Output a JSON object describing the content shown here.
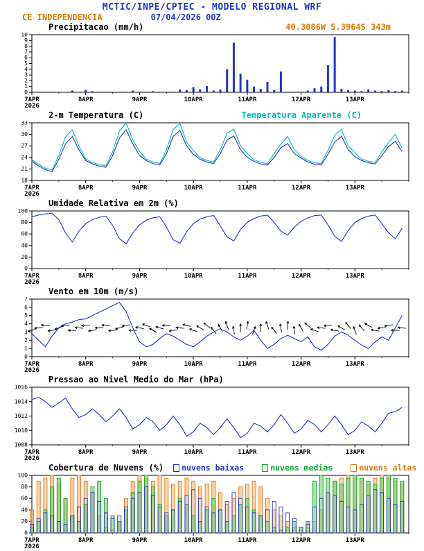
{
  "header": {
    "title": "MCTIC/INPE/CPTEC - MODELO REGIONAL WRF",
    "station": "CE INDEPENDENCIA",
    "datetime": "07/04/2026 00Z",
    "coordinates": "40.3086W 5.3964S 343m",
    "colors": {
      "title": "#2233cc",
      "station": "#dd7700",
      "datetime": "#2233cc",
      "coords": "#dd7700"
    }
  },
  "axis": {
    "x_hours": 168,
    "minor_step": 12,
    "xticks": [
      {
        "t": 0,
        "label": "7APR",
        "sub": "2026"
      },
      {
        "t": 24,
        "label": "8APR"
      },
      {
        "t": 48,
        "label": "9APR"
      },
      {
        "t": 72,
        "label": "10APR"
      },
      {
        "t": 96,
        "label": "11APR"
      },
      {
        "t": 120,
        "label": "12APR"
      },
      {
        "t": 144,
        "label": "13APR"
      }
    ]
  },
  "chart_data": [
    {
      "type": "bar",
      "title": "Precipitacao (mm/h)",
      "ylim": [
        0,
        10
      ],
      "yticks": [
        0,
        1,
        2,
        3,
        4,
        5,
        6,
        7,
        8,
        9,
        10
      ],
      "color": "#2233cc",
      "t_step": 3,
      "values": [
        0,
        0,
        0,
        0,
        0,
        0,
        0.3,
        0,
        0.4,
        0.2,
        0,
        0,
        0,
        0,
        0,
        0.3,
        0,
        0,
        0.2,
        0,
        0,
        0,
        0.5,
        0.4,
        0.9,
        0.5,
        1.1,
        0.3,
        0.5,
        4.0,
        8.6,
        3.2,
        2.2,
        1.0,
        0.6,
        1.8,
        0.4,
        3.6,
        0,
        0,
        0,
        0.3,
        0.7,
        1.0,
        4.7,
        9.6,
        0.6,
        0.4,
        0.3,
        0.2,
        0.5,
        0.3,
        0.2,
        0.4,
        0.2,
        0.3
      ]
    },
    {
      "type": "line",
      "title": "2-m Temperatura (C)",
      "ylim": [
        18,
        33
      ],
      "yticks": [
        18,
        21,
        24,
        27,
        30,
        33
      ],
      "t_step": 3,
      "series": [
        {
          "name": "2-m Temperatura (C)",
          "color": "#2233cc",
          "values": [
            23.0,
            21.8,
            20.8,
            20.3,
            23.5,
            27.5,
            29.4,
            26.0,
            23.2,
            22.3,
            21.7,
            21.4,
            24.5,
            29.0,
            31.2,
            27.5,
            24.5,
            23.2,
            22.4,
            22.0,
            25.0,
            29.5,
            31.0,
            27.0,
            24.8,
            23.5,
            22.8,
            22.4,
            25.0,
            28.5,
            29.6,
            26.0,
            24.0,
            23.0,
            22.3,
            22.0,
            24.0,
            26.5,
            27.6,
            25.0,
            23.8,
            22.8,
            22.2,
            22.0,
            24.8,
            28.0,
            29.5,
            26.0,
            24.2,
            23.2,
            22.6,
            22.3,
            24.5,
            26.8,
            28.2,
            25.5
          ]
        },
        {
          "name": "Temperatura Aparente (C)",
          "color": "#00bbbb",
          "values": [
            23.4,
            22.2,
            21.2,
            20.7,
            24.5,
            29.3,
            31.2,
            27.0,
            23.6,
            22.7,
            22.1,
            21.8,
            25.5,
            30.8,
            33.0,
            28.5,
            25.5,
            23.6,
            22.8,
            22.4,
            26.0,
            31.3,
            32.8,
            28.0,
            25.8,
            23.9,
            23.2,
            22.8,
            26.0,
            30.3,
            31.4,
            27.0,
            25.0,
            23.4,
            22.7,
            22.4,
            25.0,
            27.5,
            29.4,
            26.0,
            24.2,
            23.2,
            22.6,
            22.4,
            25.8,
            29.8,
            31.3,
            27.0,
            25.2,
            23.6,
            23.0,
            22.7,
            25.5,
            27.8,
            30.0,
            26.5
          ]
        }
      ]
    },
    {
      "type": "line",
      "title": "Umidade Relativa em 2m (%)",
      "ylim": [
        0,
        100
      ],
      "yticks": [
        0,
        20,
        40,
        60,
        80,
        100
      ],
      "t_step": 3,
      "series": [
        {
          "name": "Umidade Relativa em 2m (%)",
          "color": "#2233cc",
          "values": [
            90,
            93,
            95,
            96,
            85,
            62,
            46,
            65,
            78,
            85,
            89,
            91,
            75,
            52,
            43,
            62,
            76,
            84,
            88,
            90,
            72,
            50,
            44,
            64,
            78,
            86,
            90,
            92,
            74,
            55,
            48,
            68,
            80,
            87,
            91,
            93,
            80,
            65,
            58,
            72,
            82,
            88,
            92,
            93,
            76,
            56,
            47,
            66,
            80,
            87,
            91,
            93,
            78,
            62,
            52,
            70
          ]
        }
      ]
    },
    {
      "type": "wind",
      "title": "Vento em 10m (m/s)",
      "ylim": [
        0,
        7
      ],
      "yticks": [
        0,
        1,
        2,
        3,
        4,
        5,
        6,
        7
      ],
      "t_step": 3,
      "series": [
        {
          "name": "Vento em 10m (m/s)",
          "color": "#2233cc",
          "values": [
            2.8,
            2.0,
            1.2,
            2.5,
            3.5,
            4.0,
            4.2,
            4.5,
            4.6,
            5.0,
            5.4,
            5.8,
            6.2,
            6.6,
            5.5,
            3.5,
            1.8,
            1.2,
            1.5,
            2.2,
            2.8,
            2.5,
            2.0,
            1.5,
            1.2,
            1.8,
            2.5,
            3.0,
            3.4,
            3.0,
            2.4,
            2.0,
            2.5,
            3.2,
            2.0,
            1.0,
            1.5,
            2.2,
            2.6,
            2.2,
            1.8,
            2.4,
            1.2,
            0.8,
            1.5,
            2.5,
            3.0,
            2.6,
            2.0,
            1.4,
            1.0,
            1.8,
            2.4,
            2.0,
            3.5,
            5.0
          ]
        }
      ],
      "barbs": {
        "level": 3.5,
        "color": "#000000",
        "dirs": [
          195,
          185,
          175,
          190,
          200,
          185,
          180,
          175,
          185,
          190,
          180,
          175,
          185,
          195,
          190,
          180,
          170,
          160,
          150,
          165,
          180,
          190,
          175,
          165,
          160,
          150,
          140,
          130,
          120,
          110,
          100,
          90,
          80,
          70,
          90,
          110,
          130,
          100,
          85,
          95,
          120,
          140,
          160,
          175,
          185,
          170,
          150,
          130,
          110,
          130,
          150,
          170,
          185,
          190,
          180,
          175
        ]
      }
    },
    {
      "type": "line",
      "title": "Pressao ao Nivel Medio do Mar (hPa)",
      "ylim": [
        1008,
        1016
      ],
      "yticks": [
        1008,
        1010,
        1012,
        1014,
        1016
      ],
      "t_step": 3,
      "series": [
        {
          "name": "Pressao ao Nivel Medio do Mar (hPa)",
          "color": "#2233cc",
          "values": [
            1014.3,
            1014.6,
            1014.0,
            1013.2,
            1013.8,
            1014.5,
            1013.0,
            1011.8,
            1012.2,
            1013.0,
            1012.2,
            1011.2,
            1012.0,
            1013.0,
            1011.8,
            1010.2,
            1010.8,
            1011.8,
            1011.2,
            1010.0,
            1010.8,
            1012.0,
            1010.8,
            1009.2,
            1009.8,
            1011.0,
            1010.4,
            1009.4,
            1010.4,
            1011.6,
            1010.4,
            1009.0,
            1009.6,
            1011.0,
            1010.6,
            1009.8,
            1010.8,
            1012.2,
            1011.0,
            1009.6,
            1010.2,
            1011.4,
            1010.8,
            1009.8,
            1010.8,
            1012.0,
            1010.8,
            1009.4,
            1010.0,
            1011.2,
            1010.6,
            1009.8,
            1011.0,
            1012.4,
            1012.6,
            1013.2
          ]
        }
      ]
    },
    {
      "type": "cloud",
      "title": "Cobertura de Nuvens (%)",
      "ylim": [
        0,
        100
      ],
      "yticks": [
        0,
        20,
        40,
        60,
        80,
        100
      ],
      "t_step": 3,
      "series": [
        {
          "name": "nuvens baixas",
          "color": "#2233cc",
          "fill": "none",
          "values": [
            15,
            25,
            35,
            30,
            20,
            15,
            30,
            45,
            60,
            70,
            55,
            35,
            25,
            30,
            45,
            60,
            70,
            80,
            65,
            45,
            35,
            40,
            55,
            65,
            75,
            60,
            45,
            35,
            40,
            55,
            70,
            60,
            45,
            35,
            30,
            40,
            55,
            45,
            35,
            25,
            10,
            15,
            45,
            60,
            70,
            65,
            55,
            45,
            40,
            50,
            65,
            75,
            70,
            60,
            50,
            55
          ]
        },
        {
          "name": "nuvens medias",
          "color": "#00aa22",
          "fill": "#66cc66",
          "values": [
            10,
            20,
            40,
            80,
            95,
            60,
            30,
            20,
            50,
            80,
            90,
            60,
            30,
            20,
            40,
            70,
            90,
            100,
            80,
            50,
            30,
            40,
            60,
            50,
            30,
            20,
            40,
            60,
            40,
            20,
            30,
            50,
            60,
            40,
            30,
            20,
            10,
            5,
            10,
            20,
            10,
            20,
            90,
            100,
            95,
            90,
            85,
            95,
            100,
            95,
            90,
            85,
            95,
            100,
            95,
            90
          ]
        },
        {
          "name": "nuvens altas",
          "color": "#e07818",
          "fill": "#f5b066",
          "values": [
            40,
            90,
            95,
            100,
            85,
            60,
            95,
            100,
            90,
            70,
            30,
            10,
            5,
            20,
            60,
            90,
            100,
            95,
            90,
            100,
            95,
            85,
            90,
            95,
            90,
            80,
            85,
            90,
            70,
            50,
            60,
            80,
            85,
            90,
            80,
            60,
            40,
            30,
            20,
            10,
            5,
            10,
            20,
            40,
            70,
            90,
            95,
            100,
            95,
            90,
            85,
            95,
            100,
            95,
            90,
            85
          ]
        }
      ]
    }
  ]
}
